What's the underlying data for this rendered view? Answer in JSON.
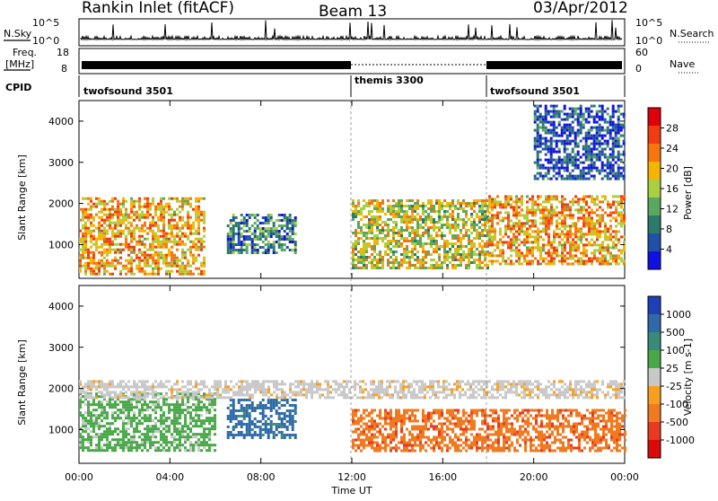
{
  "header": {
    "station": "Rankin Inlet (fitACF)",
    "beam": "Beam 13",
    "date": "03/Apr/2012"
  },
  "summary": {
    "nsky_label": "N.Sky",
    "nsearch_label": "N.Search",
    "freq_label_1": "Freq.",
    "freq_label_2": "[MHz]",
    "nave_label": "Nave",
    "cpid_label": "CPID",
    "count_ticks_left": [
      "10^5",
      "10^0"
    ],
    "count_ticks_right": [
      "10^5",
      "10^0"
    ],
    "freq_ticks": [
      "18",
      "8"
    ],
    "nave_ticks": [
      "60",
      "0"
    ],
    "cpid_segments": [
      {
        "name": "twofsound 3501",
        "start_h": 0,
        "end_h": 12
      },
      {
        "name": "themis 3300",
        "start_h": 12,
        "end_h": 18
      },
      {
        "name": "twofsound 3501",
        "start_h": 18,
        "end_h": 24
      }
    ]
  },
  "axes": {
    "y_label": "Slant Range [km]",
    "y_ticks": [
      "4000",
      "3000",
      "2000",
      "1000"
    ],
    "x_ticks": [
      "00:00",
      "04:00",
      "08:00",
      "12:00",
      "16:00",
      "20:00",
      "00:00"
    ],
    "x_label": "Time UT"
  },
  "power_scale": {
    "label": "Power [dB]",
    "ticks": [
      "28",
      "24",
      "20",
      "16",
      "12",
      "8",
      "4"
    ],
    "colors": [
      "#e0000a",
      "#f03c10",
      "#f7740e",
      "#f5b400",
      "#a8d040",
      "#5aa860",
      "#2c7a6a",
      "#2050a8",
      "#1010e0"
    ]
  },
  "velocity_scale": {
    "label": "Velocity [m s-1]",
    "ticks": [
      "1000",
      "500",
      "100",
      "25",
      "-25",
      "-100",
      "-500",
      "-1000"
    ],
    "colors": [
      "#1f3fb8",
      "#2f6aa8",
      "#3a8a7a",
      "#48a848",
      "#c8c8c8",
      "#f7a020",
      "#f07a20",
      "#e83a20",
      "#dc0a0a"
    ]
  },
  "chart_data": {
    "type": "heatmap",
    "x_range_hours": [
      0,
      24
    ],
    "y_range_km": [
      180,
      4500
    ],
    "power_regions": [
      {
        "t0": 0,
        "t1": 5.5,
        "r0": 300,
        "r1": 2150,
        "peak_db": 28
      },
      {
        "t0": 6.5,
        "t1": 9.5,
        "r0": 800,
        "r1": 1750,
        "peak_db": 16
      },
      {
        "t0": 12,
        "t1": 18,
        "r0": 400,
        "r1": 2100,
        "peak_db": 24
      },
      {
        "t0": 18,
        "t1": 24,
        "r0": 500,
        "r1": 2200,
        "peak_db": 28
      },
      {
        "t0": 20,
        "t1": 24,
        "r0": 2600,
        "r1": 4400,
        "peak_db": 12
      }
    ],
    "velocity_regions": [
      {
        "t0": 0,
        "t1": 6,
        "r0": 500,
        "r1": 1900,
        "velocity": 100
      },
      {
        "t0": 6.5,
        "t1": 9.5,
        "r0": 800,
        "r1": 1750,
        "velocity": 500
      },
      {
        "t0": 12,
        "t1": 24,
        "r0": 500,
        "r1": 1500,
        "velocity": -500
      },
      {
        "t0": 0,
        "t1": 24,
        "r0": 1800,
        "r1": 2200,
        "velocity": 25
      }
    ]
  }
}
